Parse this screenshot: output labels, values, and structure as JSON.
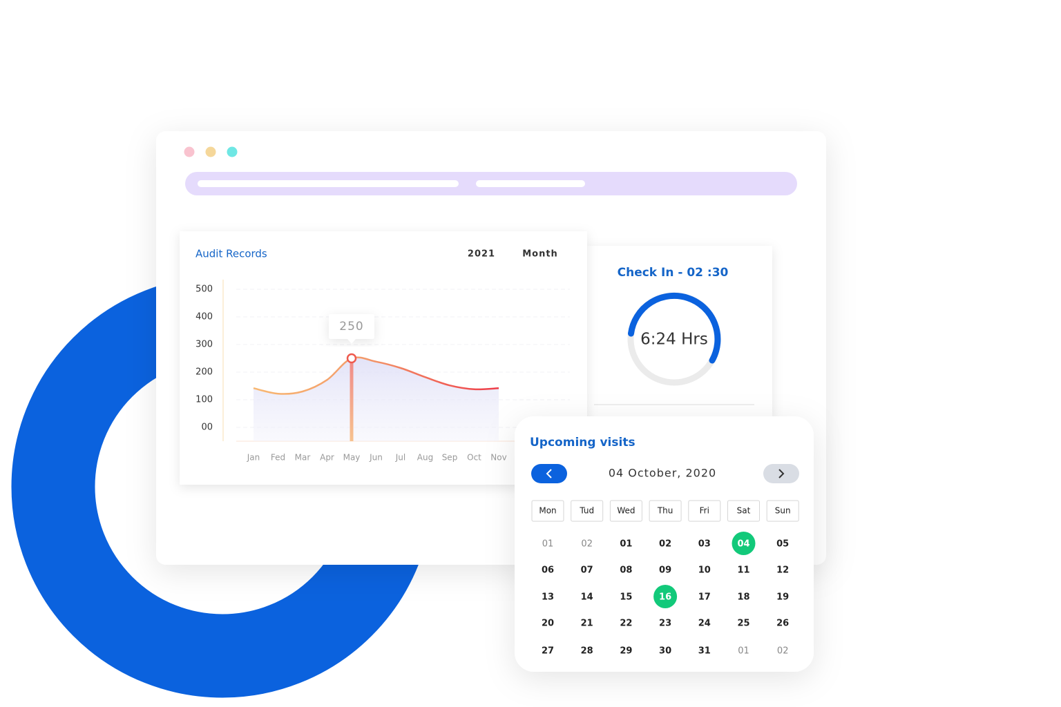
{
  "audit": {
    "type": "line",
    "title": "Audit Records",
    "year": "2021",
    "period": "Month",
    "categories": [
      "Jan",
      "Fed",
      "Mar",
      "Apr",
      "May",
      "Jun",
      "Jul",
      "Aug",
      "Sep",
      "Oct",
      "Nov"
    ],
    "values": [
      142,
      122,
      130,
      172,
      250,
      238,
      215,
      182,
      152,
      138,
      142
    ],
    "ylim": [
      0,
      500
    ],
    "yticks": [
      {
        "value": 0,
        "label": "00"
      },
      100,
      200,
      300,
      400,
      500
    ],
    "grid": true,
    "highlight_index": 4
  },
  "checkin": {
    "title": "Check In - 02 :30",
    "duration": "6:24 Hrs"
  },
  "calendar": {
    "title": "Upcoming visits",
    "date": "04 October, 2020",
    "weekdays": [
      "Mon",
      "Tud",
      "Wed",
      "Thu",
      "Fri",
      "Sat",
      "Sun"
    ],
    "rows": [
      [
        {
          "day": "01",
          "muted": true
        },
        {
          "day": "02",
          "muted": true
        },
        {
          "day": "01"
        },
        {
          "day": "02"
        },
        {
          "day": "03"
        },
        {
          "day": "04",
          "selected": true
        },
        {
          "day": "05"
        }
      ],
      [
        {
          "day": "06"
        },
        {
          "day": "07"
        },
        {
          "day": "08"
        },
        {
          "day": "09"
        },
        {
          "day": "10"
        },
        {
          "day": "11"
        },
        {
          "day": "12"
        }
      ],
      [
        {
          "day": "13"
        },
        {
          "day": "14"
        },
        {
          "day": "15"
        },
        {
          "day": "16",
          "selected": true
        },
        {
          "day": "17"
        },
        {
          "day": "18"
        },
        {
          "day": "19"
        }
      ],
      [
        {
          "day": "20"
        },
        {
          "day": "21"
        },
        {
          "day": "22"
        },
        {
          "day": "23"
        },
        {
          "day": "24"
        },
        {
          "day": "25"
        },
        {
          "day": "26"
        }
      ],
      [
        {
          "day": "27"
        },
        {
          "day": "28"
        },
        {
          "day": "29"
        },
        {
          "day": "30"
        },
        {
          "day": "31"
        },
        {
          "day": "01",
          "muted": true
        },
        {
          "day": "02",
          "muted": true
        }
      ]
    ]
  }
}
